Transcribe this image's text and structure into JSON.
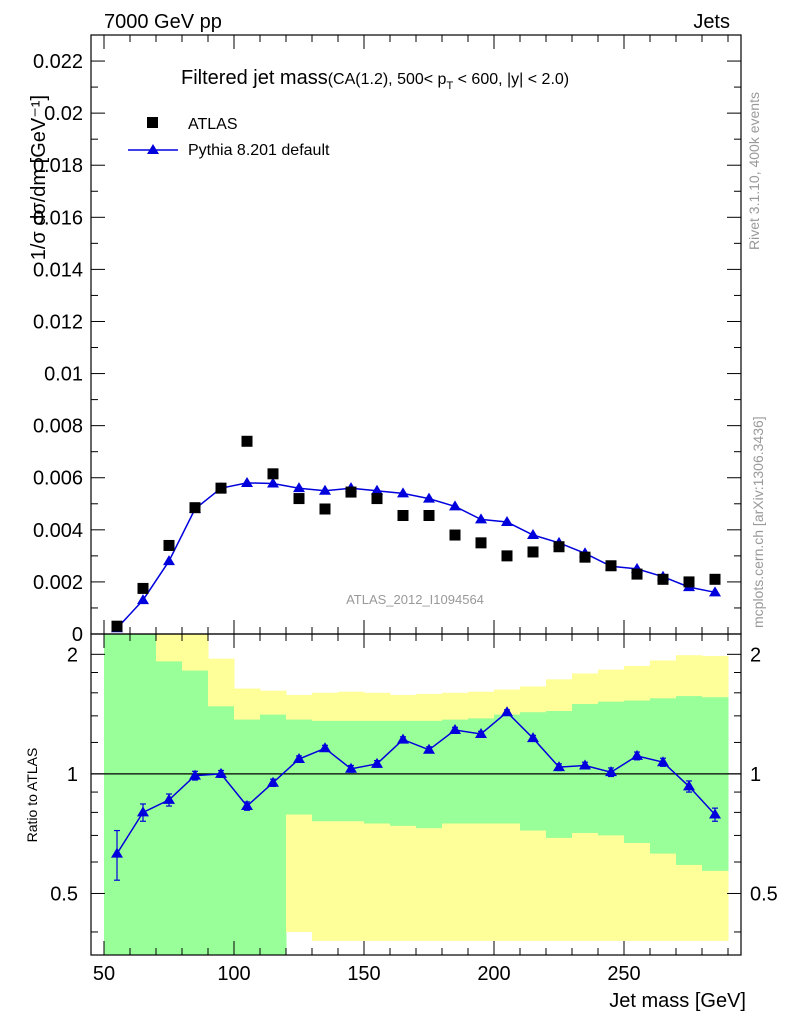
{
  "header": {
    "left": "7000 GeV pp",
    "right": "Jets"
  },
  "side_labels": {
    "rivet": "Rivet 3.1.10,  400k events",
    "mcplots": "mcplots.cern.ch [arXiv:1306.3436]"
  },
  "watermark": "ATLAS_2012_I1094564",
  "colors": {
    "data": "#000000",
    "mc": "#0000dd",
    "band_inner": "#99ff99",
    "band_outer": "#ffff99",
    "watermark": "#999999"
  },
  "chart_data": [
    {
      "type": "scatter",
      "title": "Filtered jet mass",
      "title_suffix": "(CA(1.2), 500< p_T < 600, |y| < 2.0)",
      "ylabel": "1/σ dσ/dm [GeV⁻¹]",
      "xlim": [
        45,
        295
      ],
      "ylim": [
        0,
        0.023
      ],
      "yticks": [
        0,
        0.002,
        0.004,
        0.006,
        0.008,
        0.01,
        0.012,
        0.014,
        0.016,
        0.018,
        0.02,
        0.022
      ],
      "ytick_labels": [
        "0",
        "0.002",
        "0.004",
        "0.006",
        "0.008",
        "0.01",
        "0.012",
        "0.014",
        "0.016",
        "0.018",
        "0.02",
        "0.022"
      ],
      "legend_position": "top-left",
      "x": [
        55,
        65,
        75,
        85,
        95,
        105,
        115,
        125,
        135,
        145,
        155,
        165,
        175,
        185,
        195,
        205,
        215,
        225,
        235,
        245,
        255,
        265,
        275,
        285
      ],
      "series": [
        {
          "name": "ATLAS",
          "marker": "square",
          "values": [
            0.0003,
            0.00175,
            0.0034,
            0.00485,
            0.0056,
            0.0074,
            0.00615,
            0.0052,
            0.0048,
            0.00545,
            0.0052,
            0.00455,
            0.00455,
            0.0038,
            0.0035,
            0.003,
            0.00315,
            0.00335,
            0.00295,
            0.00262,
            0.0023,
            0.0021,
            0.002,
            0.0021
          ]
        },
        {
          "name": "Pythia 8.201 default",
          "marker": "triangle-line",
          "values": [
            0.00022,
            0.0013,
            0.0028,
            0.0048,
            0.0056,
            0.0058,
            0.00578,
            0.0056,
            0.0055,
            0.0056,
            0.0055,
            0.0054,
            0.0052,
            0.0049,
            0.0044,
            0.0043,
            0.0038,
            0.0035,
            0.0031,
            0.0026,
            0.0025,
            0.0022,
            0.0018,
            0.0016
          ]
        }
      ]
    },
    {
      "type": "line",
      "ylabel": "Ratio to ATLAS",
      "xlabel": "Jet mass [GeV]",
      "xlim": [
        45,
        295
      ],
      "ylim": [
        0.35,
        2.25
      ],
      "xticks": [
        50,
        100,
        150,
        200,
        250
      ],
      "xtick_labels": [
        "50",
        "100",
        "150",
        "200",
        "250"
      ],
      "yticks": [
        0.5,
        1,
        2
      ],
      "ytick_labels": [
        "0.5",
        "1",
        "2"
      ],
      "reference_line": 1,
      "bin_edges": [
        50,
        60,
        70,
        80,
        90,
        100,
        110,
        120,
        130,
        140,
        150,
        160,
        170,
        180,
        190,
        200,
        210,
        220,
        230,
        240,
        250,
        260,
        270,
        280,
        290
      ],
      "bands": {
        "inner": {
          "low": [
            0.35,
            0.35,
            0.35,
            0.35,
            0.35,
            0.35,
            0.35,
            0.79,
            0.76,
            0.76,
            0.75,
            0.74,
            0.73,
            0.75,
            0.75,
            0.75,
            0.72,
            0.69,
            0.71,
            0.7,
            0.67,
            0.63,
            0.59,
            0.57,
            0.55
          ],
          "high": [
            2.25,
            2.25,
            1.92,
            1.82,
            1.48,
            1.37,
            1.41,
            1.37,
            1.36,
            1.36,
            1.36,
            1.36,
            1.36,
            1.37,
            1.38,
            1.41,
            1.43,
            1.44,
            1.5,
            1.52,
            1.53,
            1.55,
            1.57,
            1.56,
            1.55
          ]
        },
        "outer": {
          "low": [
            0.35,
            0.35,
            0.35,
            0.35,
            0.52,
            0.68,
            0.68,
            0.4,
            0.38,
            0.38,
            0.38,
            0.38,
            0.38,
            0.38,
            0.38,
            0.38,
            0.38,
            0.38,
            0.38,
            0.38,
            0.38,
            0.38,
            0.38,
            0.38,
            0.38
          ],
          "high": [
            2.25,
            2.25,
            2.25,
            2.25,
            1.95,
            1.64,
            1.62,
            1.58,
            1.6,
            1.61,
            1.6,
            1.58,
            1.59,
            1.6,
            1.61,
            1.63,
            1.66,
            1.73,
            1.79,
            1.83,
            1.87,
            1.93,
            1.99,
            1.98,
            1.95
          ]
        }
      },
      "ratio": {
        "values": [
          0.63,
          0.8,
          0.86,
          0.99,
          1.0,
          0.83,
          0.95,
          1.09,
          1.16,
          1.03,
          1.06,
          1.22,
          1.15,
          1.29,
          1.26,
          1.43,
          1.23,
          1.04,
          1.05,
          1.01,
          1.11,
          1.07,
          0.93,
          0.79
        ],
        "errors": [
          0.09,
          0.04,
          0.03,
          0.025,
          0.02,
          0.02,
          0.02,
          0.02,
          0.02,
          0.02,
          0.02,
          0.02,
          0.02,
          0.02,
          0.02,
          0.02,
          0.02,
          0.02,
          0.02,
          0.025,
          0.025,
          0.025,
          0.03,
          0.03
        ]
      }
    }
  ]
}
